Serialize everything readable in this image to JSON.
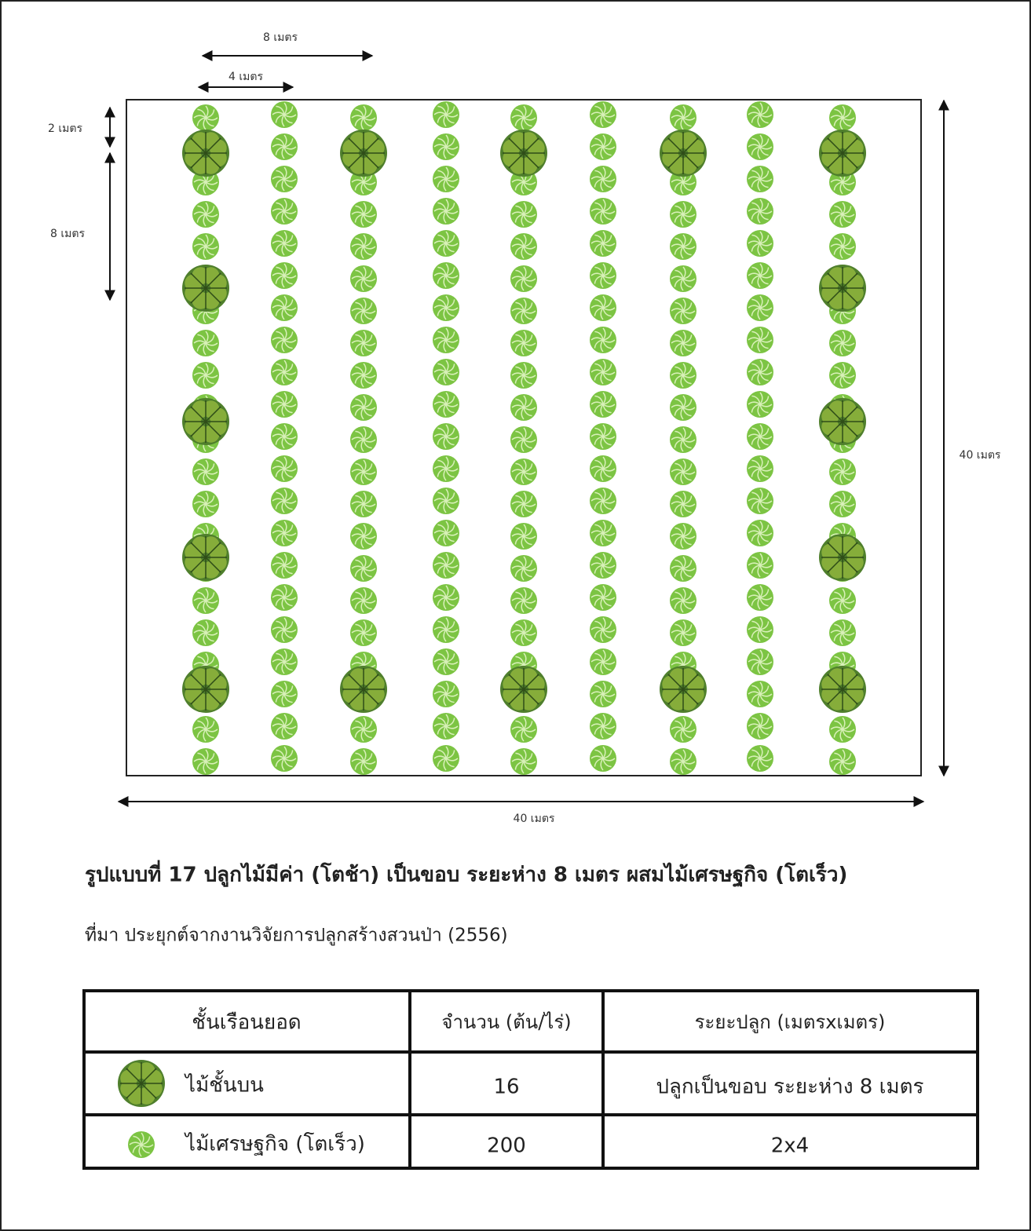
{
  "dimensions": {
    "top_outer": "8 เมตร",
    "top_inner": "4 เมตร",
    "left_top": "2 เมตร",
    "left_lower": "8 เมตร",
    "right": "40 เมตร",
    "bottom": "40 เมตร"
  },
  "caption": "รูปแบบที่ 17 ปลูกไม้มีค่า (โตช้า) เป็นขอบ ระยะห่าง 8 เมตร ผสมไม้เศรษฐกิจ (โตเร็ว)",
  "source": "ที่มา ประยุกต์จากงานวิจัยการปลูกสร้างสวนป่า (2556)",
  "table": {
    "header": [
      "ชั้นเรือนยอด",
      "จำนวน (ต้น/ไร่)",
      "ระยะปลูก (เมตรxเมตร)"
    ],
    "rows": [
      [
        "ไม้ชั้นบน",
        "16",
        "ปลูกเป็นขอบ ระยะห่าง 8 เมตร"
      ],
      [
        "ไม้เศรษฐกิจ (โตเร็ว)",
        "200",
        "2x4"
      ]
    ]
  }
}
